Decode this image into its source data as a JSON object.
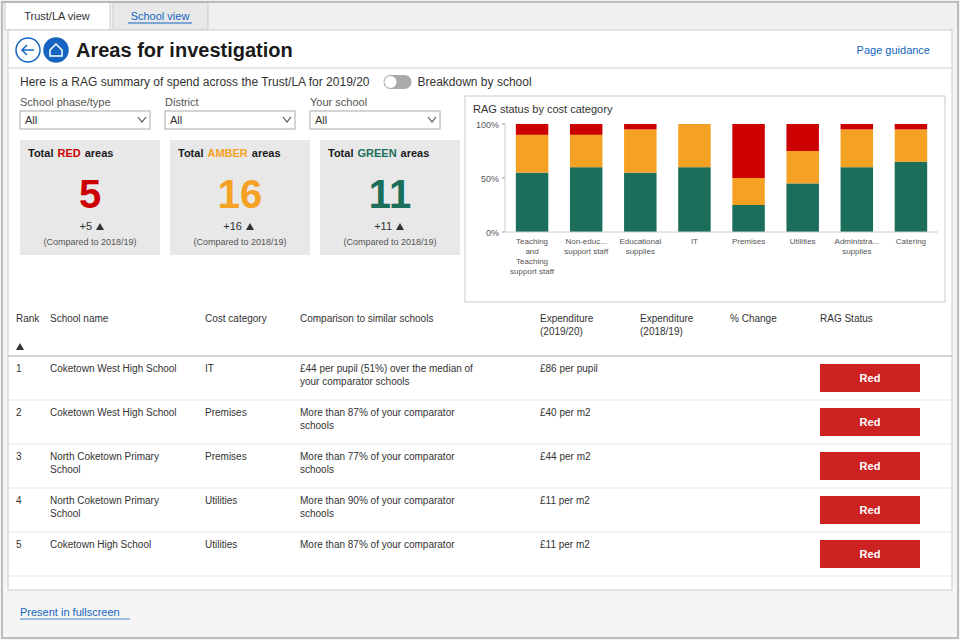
{
  "chart_data": {
    "type": "bar",
    "stacked": true,
    "title": "RAG status by cost category",
    "categories": [
      "Teaching\nand\nTeaching\nsupport staff",
      "Non-educ...\nsupport staff",
      "Educational\nsupplies",
      "IT",
      "Premises",
      "Utilities",
      "Administra...\nsupplies",
      "Catering"
    ],
    "series": [
      {
        "color": "#1a6e5a",
        "values": [
          55,
          60,
          55,
          60,
          25,
          45,
          60,
          65
        ]
      },
      {
        "color": "#f4a124",
        "values": [
          35,
          30,
          40,
          40,
          25,
          30,
          35,
          30
        ]
      },
      {
        "color": "#cc0000",
        "values": [
          10,
          10,
          5,
          0,
          50,
          25,
          5,
          5
        ]
      }
    ],
    "ylim": [
      0,
      100
    ],
    "yticks": [
      {
        "value": 0,
        "label": "0%"
      },
      {
        "value": 50,
        "label": "50%"
      },
      {
        "value": 100,
        "label": "100%"
      }
    ]
  },
  "page": {
    "tabs": [
      "Trust/LA view",
      "School view"
    ],
    "title": "Areas for investigation",
    "page_guidance": "Page guidance",
    "subtitle": "Here is a RAG summary of spend across the Trust/LA for 2019/20",
    "breakdown_label": "Breakdown by school",
    "filters": [
      {
        "label": "School phase/type",
        "value": "All"
      },
      {
        "label": "District",
        "value": "All"
      },
      {
        "label": "Your school",
        "value": "All"
      }
    ],
    "cards": [
      {
        "label": [
          "Total",
          "RED",
          "areas"
        ],
        "count": 5,
        "change": "+5",
        "comparison": "(Compared to 2018/19)",
        "color": "#cc0000"
      },
      {
        "label": [
          "Total",
          "AMBER",
          "areas"
        ],
        "count": 16,
        "change": "+16",
        "comparison": "(Compared to 2018/19)",
        "color": "#f4a124"
      },
      {
        "label": [
          "Total",
          "GREEN",
          "areas"
        ],
        "count": 11,
        "change": "+11",
        "comparison": "(Compared to 2018/19)",
        "color": "#1a6e5a"
      }
    ],
    "table": {
      "headers": [
        "Rank",
        "School name",
        "Cost category",
        "Comparison to similar schools",
        "Expenditure\n(2019/20)",
        "Expenditure\n(2018/19)",
        "% Change",
        "RAG Status"
      ],
      "rows": [
        [
          "1",
          "Coketown West High School",
          "IT",
          "£44 per pupil (51%) over the median of\nyour comparator schools",
          "£86 per pupil",
          null,
          null,
          "Red"
        ],
        [
          "2",
          "Coketown West High School",
          "Premises",
          "More than 87% of your comparator\nschools",
          "£40 per m2",
          null,
          null,
          "Red"
        ],
        [
          "3",
          "North Coketown Primary\nSchool",
          "Premises",
          "More than 77% of your comparator\nschools",
          "£44 per m2",
          null,
          null,
          "Red"
        ],
        [
          "4",
          "North Coketown Primary\nSchool",
          "Utilities",
          "More than 90% of your comparator\nschools",
          "£11 per m2",
          null,
          null,
          "Red"
        ],
        [
          "5",
          "Coketown High School",
          "Utilities",
          "More than 87% of your comparator",
          "£11 per m2",
          null,
          null,
          "Red"
        ]
      ],
      "status_color": "#cc2222"
    },
    "present_fullscreen": "Present in fullscreen"
  }
}
